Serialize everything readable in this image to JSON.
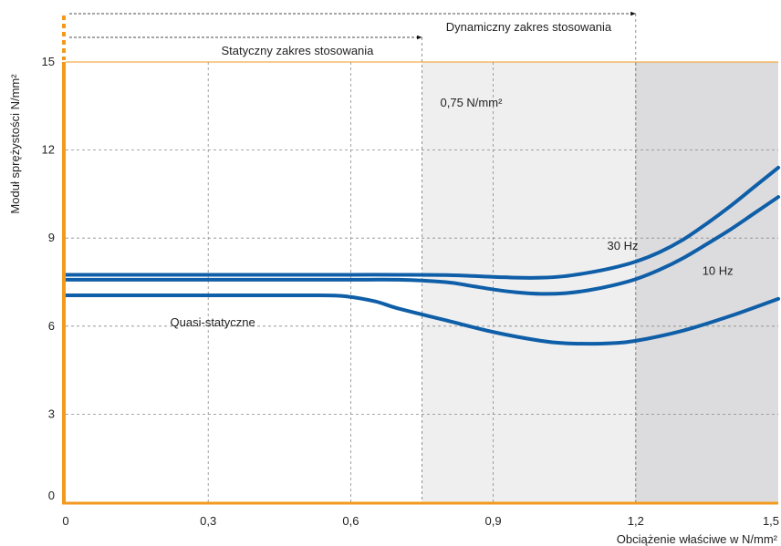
{
  "chart_data": {
    "type": "line",
    "xlabel": "Obciążenie właściwe w N/mm²",
    "ylabel": "Moduł sprężystości N/mm²",
    "xlim": [
      0,
      1.5
    ],
    "ylim": [
      0,
      15
    ],
    "x_ticks": [
      {
        "value": 0,
        "label": "0"
      },
      {
        "value": 0.3,
        "label": "0,3"
      },
      {
        "value": 0.6,
        "label": "0,6"
      },
      {
        "value": 0.9,
        "label": "0,9"
      },
      {
        "value": 1.2,
        "label": "1,2"
      },
      {
        "value": 1.5,
        "label": "1,5"
      }
    ],
    "y_ticks": [
      {
        "value": 0,
        "label": "0"
      },
      {
        "value": 3,
        "label": "3"
      },
      {
        "value": 6,
        "label": "6"
      },
      {
        "value": 9,
        "label": "9"
      },
      {
        "value": 12,
        "label": "12"
      },
      {
        "value": 15,
        "label": "15"
      }
    ],
    "grid": true,
    "colors": {
      "series": "#0f5ea8",
      "axis": "#f39a1e",
      "grid": "#8a8a8a",
      "static_region": "#efeff0",
      "dynamic_region": "#dcdcde"
    },
    "regions": [
      {
        "x_from": 0.75,
        "x_to": 1.2,
        "label": "0,75 N/mm²"
      },
      {
        "x_from": 1.2,
        "x_to": 1.5,
        "label": ""
      }
    ],
    "ranges": [
      {
        "label": "Dynamiczny zakres stosowania",
        "x_from": 0,
        "x_to": 1.2
      },
      {
        "label": "Statyczny zakres stosowania",
        "x_from": 0,
        "x_to": 0.75
      }
    ],
    "series": [
      {
        "name": "30 Hz",
        "x": [
          0,
          0.1,
          0.2,
          0.3,
          0.4,
          0.5,
          0.6,
          0.7,
          0.8,
          0.9,
          0.95,
          1.0,
          1.05,
          1.1,
          1.15,
          1.2,
          1.25,
          1.3,
          1.35,
          1.4,
          1.45,
          1.5
        ],
        "y": [
          7.75,
          7.75,
          7.75,
          7.75,
          7.75,
          7.75,
          7.75,
          7.75,
          7.74,
          7.68,
          7.65,
          7.65,
          7.7,
          7.82,
          7.98,
          8.2,
          8.52,
          8.95,
          9.5,
          10.1,
          10.75,
          11.4
        ]
      },
      {
        "name": "10 Hz",
        "x": [
          0,
          0.1,
          0.2,
          0.3,
          0.4,
          0.5,
          0.6,
          0.7,
          0.8,
          0.85,
          0.9,
          0.95,
          1.0,
          1.05,
          1.1,
          1.15,
          1.2,
          1.25,
          1.3,
          1.35,
          1.4,
          1.45,
          1.5
        ],
        "y": [
          7.58,
          7.58,
          7.58,
          7.58,
          7.58,
          7.58,
          7.58,
          7.58,
          7.5,
          7.38,
          7.25,
          7.15,
          7.1,
          7.12,
          7.22,
          7.38,
          7.6,
          7.92,
          8.32,
          8.8,
          9.3,
          9.85,
          10.4
        ]
      },
      {
        "name": "Quasi-statyczne",
        "x": [
          0,
          0.1,
          0.2,
          0.3,
          0.4,
          0.5,
          0.58,
          0.65,
          0.7,
          0.8,
          0.9,
          1.0,
          1.05,
          1.1,
          1.15,
          1.2,
          1.3,
          1.4,
          1.5
        ],
        "y": [
          7.05,
          7.05,
          7.05,
          7.05,
          7.05,
          7.05,
          7.03,
          6.85,
          6.6,
          6.2,
          5.8,
          5.5,
          5.42,
          5.4,
          5.42,
          5.5,
          5.85,
          6.35,
          6.93
        ]
      }
    ],
    "series_labels": [
      {
        "text": "30 Hz",
        "x": 1.14,
        "y": 8.6
      },
      {
        "text": "10 Hz",
        "x": 1.34,
        "y": 7.75
      },
      {
        "text": "Quasi-statyczne",
        "x": 0.22,
        "y": 6.0
      }
    ]
  }
}
